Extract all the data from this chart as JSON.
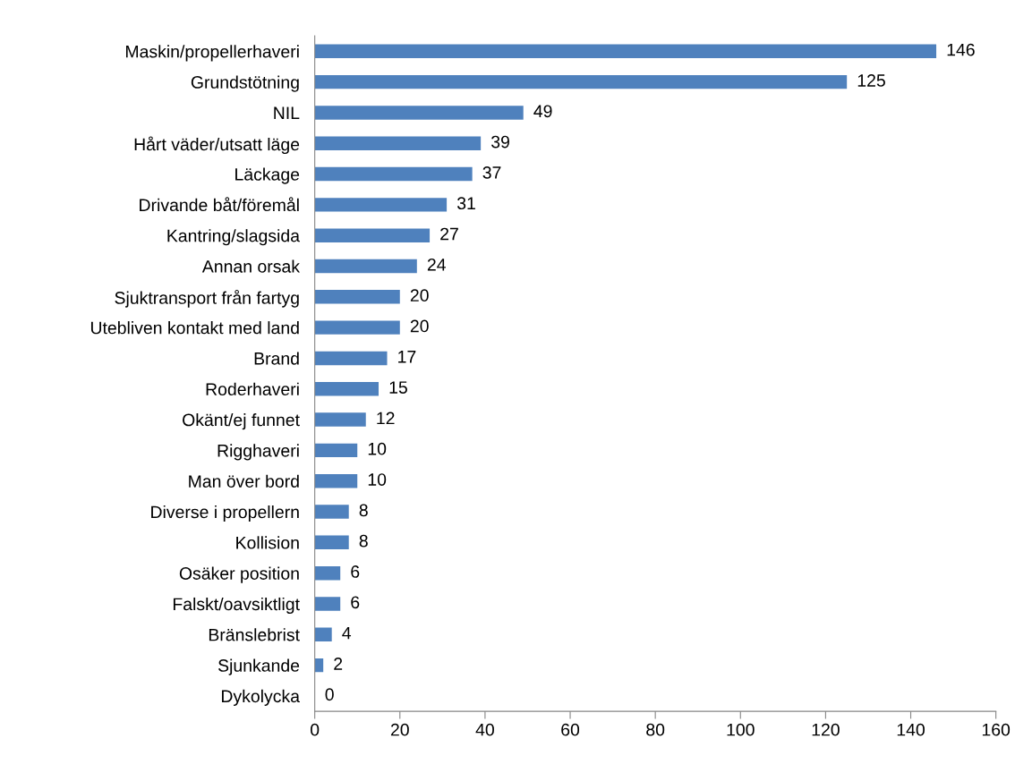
{
  "chart_data": {
    "type": "bar",
    "orientation": "horizontal",
    "categories": [
      "Maskin/propellerhaveri",
      "Grundstötning",
      "NIL",
      "Hårt väder/utsatt läge",
      "Läckage",
      "Drivande båt/föremål",
      "Kantring/slagsida",
      "Annan orsak",
      "Sjuktransport från fartyg",
      "Utebliven kontakt med land",
      "Brand",
      "Roderhaveri",
      "Okänt/ej funnet",
      "Rigghaveri",
      "Man över bord",
      "Diverse i propellern",
      "Kollision",
      "Osäker position",
      "Falskt/oavsiktligt",
      "Bränslebrist",
      "Sjunkande",
      "Dykolycka"
    ],
    "values": [
      146,
      125,
      49,
      39,
      37,
      31,
      27,
      24,
      20,
      20,
      17,
      15,
      12,
      10,
      10,
      8,
      8,
      6,
      6,
      4,
      2,
      0
    ],
    "color": "#4f81bd",
    "xlim": [
      0,
      160
    ],
    "xticks": [
      0,
      20,
      40,
      60,
      80,
      100,
      120,
      140,
      160
    ],
    "data_labels": true,
    "grid": false,
    "legend": false
  }
}
